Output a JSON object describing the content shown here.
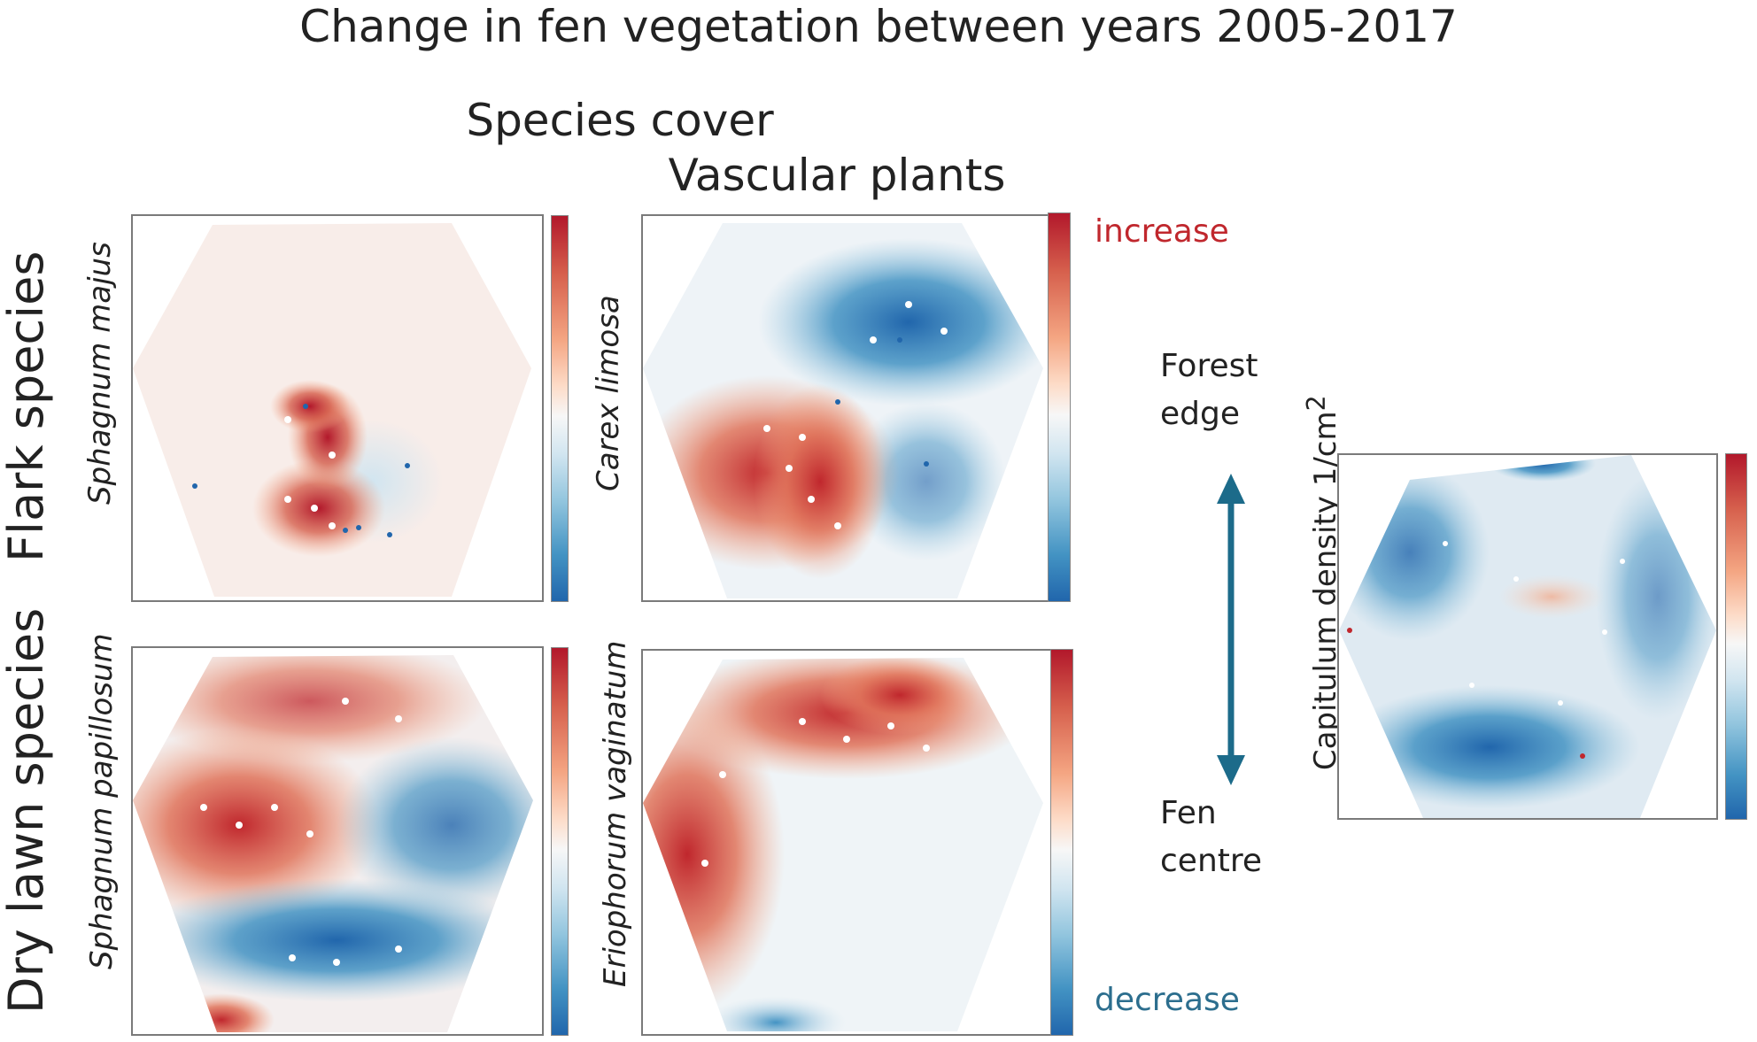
{
  "title": "Change in fen vegetation between years 2005-2017",
  "species_cover": "Species cover",
  "vascular_plants": "Vascular plants",
  "row_labels": {
    "flark": "Flark species",
    "dry_lawn": "Dry lawn species"
  },
  "species": {
    "sphagnum_majus": "Sphagnum majus",
    "carex_limosa": "Carex limosa",
    "sphagnum_papillosum": "Sphagnum papillosum",
    "eriophorum_vaginatum": "Eriophorum vaginatum"
  },
  "legend": {
    "increase": "increase",
    "decrease": "decrease"
  },
  "gradient": {
    "forest": "Forest edge",
    "forest_l1": "Forest",
    "forest_l2": "edge",
    "fen_l1": "Fen",
    "fen_l2": "centre"
  },
  "capitulum": {
    "label_prefix": "Capitulum density 1/cm",
    "label_sup": "2"
  },
  "colors": {
    "increase": "#c0272d",
    "decrease": "#2c6e8e",
    "arrow": "#1c6b8a",
    "red": "#c8342c",
    "blue": "#2f73b3"
  }
}
